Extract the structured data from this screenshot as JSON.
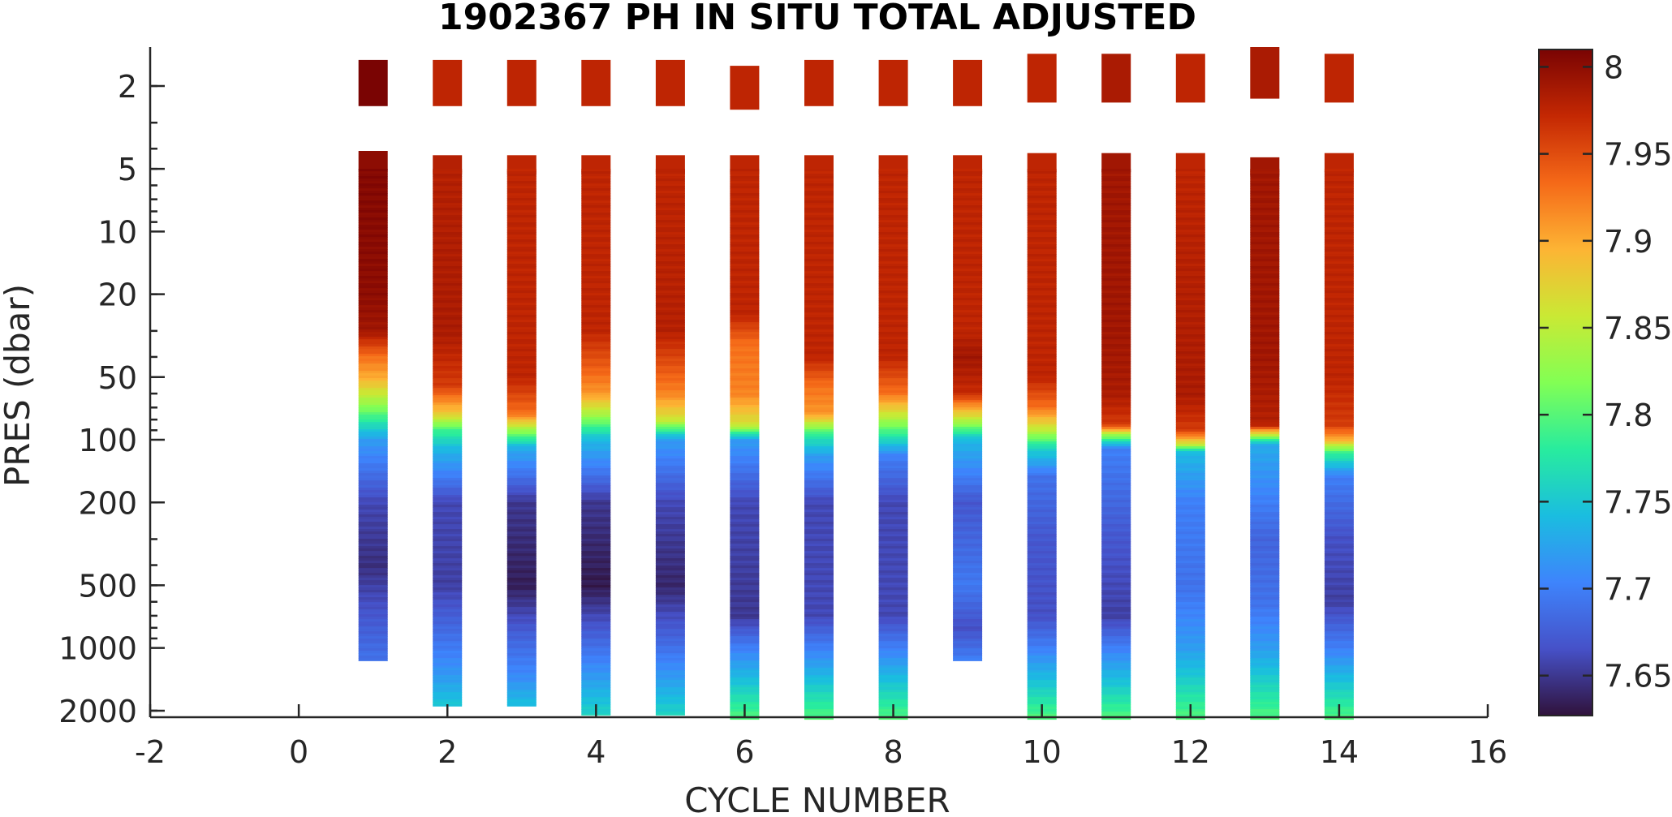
{
  "chart_data": {
    "type": "heatmap",
    "title": "1902367  PH IN SITU TOTAL ADJUSTED",
    "xlabel": "CYCLE NUMBER",
    "ylabel": "PRES (dbar)",
    "xlim": [
      -2,
      16
    ],
    "x_ticks": [
      -2,
      0,
      2,
      4,
      6,
      8,
      10,
      12,
      14,
      16
    ],
    "y_scale": "log",
    "ylim": [
      1.3,
      2150
    ],
    "y_reversed": true,
    "y_ticks": [
      2,
      5,
      10,
      20,
      50,
      100,
      200,
      500,
      1000,
      2000
    ],
    "colorbar": {
      "colormap": "turbo",
      "range": [
        7.627,
        8.01
      ],
      "ticks": [
        7.65,
        7.7,
        7.75,
        7.8,
        7.85,
        7.9,
        7.95,
        8
      ]
    },
    "profiles": [
      {
        "cycle": 1,
        "max_pres": 1150,
        "top": [
          [
            1.5,
            2.5,
            8.01
          ],
          [
            4.1,
            5.1,
            8.0
          ]
        ],
        "depth_values": [
          [
            5,
            8.005
          ],
          [
            20,
            8.0
          ],
          [
            30,
            7.99
          ],
          [
            40,
            7.93
          ],
          [
            50,
            7.9
          ],
          [
            70,
            7.82
          ],
          [
            100,
            7.72
          ],
          [
            200,
            7.66
          ],
          [
            400,
            7.645
          ],
          [
            700,
            7.67
          ],
          [
            1150,
            7.69
          ]
        ]
      },
      {
        "cycle": 2,
        "max_pres": 1900,
        "top": [
          [
            1.5,
            2.5,
            7.975
          ],
          [
            4.3,
            5.3,
            7.98
          ]
        ],
        "depth_values": [
          [
            5,
            7.98
          ],
          [
            30,
            7.985
          ],
          [
            55,
            7.96
          ],
          [
            75,
            7.88
          ],
          [
            90,
            7.79
          ],
          [
            110,
            7.74
          ],
          [
            200,
            7.66
          ],
          [
            500,
            7.655
          ],
          [
            900,
            7.69
          ],
          [
            1400,
            7.72
          ],
          [
            1900,
            7.75
          ]
        ]
      },
      {
        "cycle": 3,
        "max_pres": 1900,
        "top": [
          [
            1.5,
            2.5,
            7.975
          ],
          [
            4.3,
            5.3,
            7.975
          ]
        ],
        "depth_values": [
          [
            5,
            7.975
          ],
          [
            50,
            7.975
          ],
          [
            75,
            7.93
          ],
          [
            90,
            7.83
          ],
          [
            110,
            7.73
          ],
          [
            200,
            7.65
          ],
          [
            500,
            7.635
          ],
          [
            900,
            7.68
          ],
          [
            1400,
            7.71
          ],
          [
            1900,
            7.745
          ]
        ]
      },
      {
        "cycle": 4,
        "max_pres": 2100,
        "top": [
          [
            1.5,
            2.5,
            7.975
          ],
          [
            4.3,
            5.3,
            7.975
          ]
        ],
        "depth_values": [
          [
            5,
            7.975
          ],
          [
            30,
            7.975
          ],
          [
            45,
            7.94
          ],
          [
            60,
            7.91
          ],
          [
            75,
            7.84
          ],
          [
            100,
            7.74
          ],
          [
            200,
            7.65
          ],
          [
            500,
            7.632
          ],
          [
            900,
            7.68
          ],
          [
            1400,
            7.72
          ],
          [
            2100,
            7.76
          ]
        ]
      },
      {
        "cycle": 5,
        "max_pres": 2100,
        "top": [
          [
            1.5,
            2.5,
            7.975
          ],
          [
            4.3,
            5.3,
            7.975
          ]
        ],
        "depth_values": [
          [
            5,
            7.975
          ],
          [
            30,
            7.98
          ],
          [
            45,
            7.945
          ],
          [
            60,
            7.92
          ],
          [
            80,
            7.86
          ],
          [
            100,
            7.72
          ],
          [
            200,
            7.66
          ],
          [
            500,
            7.64
          ],
          [
            900,
            7.68
          ],
          [
            1400,
            7.72
          ],
          [
            2100,
            7.76
          ]
        ]
      },
      {
        "cycle": 6,
        "max_pres": 2200,
        "top": [
          [
            1.6,
            2.6,
            7.975
          ],
          [
            4.3,
            5.3,
            7.975
          ]
        ],
        "depth_values": [
          [
            5,
            7.975
          ],
          [
            25,
            7.975
          ],
          [
            35,
            7.93
          ],
          [
            60,
            7.92
          ],
          [
            85,
            7.86
          ],
          [
            100,
            7.72
          ],
          [
            200,
            7.66
          ],
          [
            700,
            7.65
          ],
          [
            1000,
            7.7
          ],
          [
            1500,
            7.75
          ],
          [
            2200,
            7.8
          ]
        ]
      },
      {
        "cycle": 7,
        "max_pres": 2200,
        "top": [
          [
            1.5,
            2.5,
            7.975
          ],
          [
            4.3,
            5.3,
            7.975
          ]
        ],
        "depth_values": [
          [
            5,
            7.975
          ],
          [
            40,
            7.975
          ],
          [
            55,
            7.93
          ],
          [
            75,
            7.91
          ],
          [
            95,
            7.78
          ],
          [
            120,
            7.72
          ],
          [
            200,
            7.66
          ],
          [
            700,
            7.66
          ],
          [
            1000,
            7.7
          ],
          [
            1500,
            7.75
          ],
          [
            2200,
            7.8
          ]
        ]
      },
      {
        "cycle": 8,
        "max_pres": 2200,
        "top": [
          [
            1.5,
            2.5,
            7.975
          ],
          [
            4.3,
            5.3,
            7.975
          ]
        ],
        "depth_values": [
          [
            5,
            7.975
          ],
          [
            40,
            7.975
          ],
          [
            60,
            7.93
          ],
          [
            75,
            7.86
          ],
          [
            95,
            7.78
          ],
          [
            120,
            7.7
          ],
          [
            200,
            7.66
          ],
          [
            700,
            7.66
          ],
          [
            1000,
            7.7
          ],
          [
            1500,
            7.75
          ],
          [
            2200,
            7.8
          ]
        ]
      },
      {
        "cycle": 9,
        "max_pres": 1150,
        "top": [
          [
            1.5,
            2.5,
            7.975
          ],
          [
            4.3,
            5.3,
            7.975
          ]
        ],
        "depth_values": [
          [
            5,
            7.975
          ],
          [
            30,
            7.975
          ],
          [
            40,
            7.99
          ],
          [
            60,
            7.97
          ],
          [
            80,
            7.85
          ],
          [
            100,
            7.74
          ],
          [
            200,
            7.67
          ],
          [
            500,
            7.695
          ],
          [
            800,
            7.665
          ],
          [
            1150,
            7.7
          ]
        ]
      },
      {
        "cycle": 10,
        "max_pres": 2200,
        "top": [
          [
            1.4,
            2.4,
            7.975
          ],
          [
            4.2,
            5.2,
            7.975
          ]
        ],
        "depth_values": [
          [
            5,
            7.975
          ],
          [
            50,
            7.975
          ],
          [
            70,
            7.93
          ],
          [
            90,
            7.85
          ],
          [
            110,
            7.76
          ],
          [
            150,
            7.69
          ],
          [
            300,
            7.67
          ],
          [
            700,
            7.665
          ],
          [
            1000,
            7.7
          ],
          [
            1500,
            7.75
          ],
          [
            2200,
            7.8
          ]
        ]
      },
      {
        "cycle": 11,
        "max_pres": 2200,
        "top": [
          [
            1.4,
            2.4,
            7.985
          ],
          [
            4.2,
            5.2,
            7.99
          ]
        ],
        "depth_values": [
          [
            5,
            7.99
          ],
          [
            30,
            7.99
          ],
          [
            60,
            7.985
          ],
          [
            85,
            7.96
          ],
          [
            95,
            7.83
          ],
          [
            110,
            7.7
          ],
          [
            300,
            7.67
          ],
          [
            700,
            7.655
          ],
          [
            1000,
            7.7
          ],
          [
            1500,
            7.75
          ],
          [
            2200,
            7.8
          ]
        ]
      },
      {
        "cycle": 12,
        "max_pres": 2200,
        "top": [
          [
            1.4,
            2.4,
            7.975
          ],
          [
            4.2,
            5.2,
            7.975
          ]
        ],
        "depth_values": [
          [
            5,
            7.975
          ],
          [
            60,
            7.985
          ],
          [
            90,
            7.96
          ],
          [
            105,
            7.86
          ],
          [
            115,
            7.74
          ],
          [
            200,
            7.7
          ],
          [
            500,
            7.69
          ],
          [
            1000,
            7.72
          ],
          [
            1500,
            7.76
          ],
          [
            2200,
            7.8
          ]
        ]
      },
      {
        "cycle": 13,
        "max_pres": 2200,
        "top": [
          [
            1.3,
            2.3,
            7.985
          ],
          [
            4.4,
            5.4,
            7.99
          ]
        ],
        "depth_values": [
          [
            5,
            7.99
          ],
          [
            40,
            7.99
          ],
          [
            85,
            7.98
          ],
          [
            95,
            7.85
          ],
          [
            105,
            7.73
          ],
          [
            300,
            7.68
          ],
          [
            600,
            7.69
          ],
          [
            1000,
            7.72
          ],
          [
            1500,
            7.76
          ],
          [
            2200,
            7.8
          ]
        ]
      },
      {
        "cycle": 14,
        "max_pres": 2200,
        "top": [
          [
            1.4,
            2.4,
            7.975
          ],
          [
            4.2,
            5.2,
            7.975
          ]
        ],
        "depth_values": [
          [
            5,
            7.975
          ],
          [
            50,
            7.975
          ],
          [
            85,
            7.96
          ],
          [
            100,
            7.9
          ],
          [
            115,
            7.79
          ],
          [
            150,
            7.7
          ],
          [
            300,
            7.665
          ],
          [
            600,
            7.655
          ],
          [
            1000,
            7.7
          ],
          [
            1500,
            7.75
          ],
          [
            2200,
            7.8
          ]
        ]
      }
    ]
  }
}
